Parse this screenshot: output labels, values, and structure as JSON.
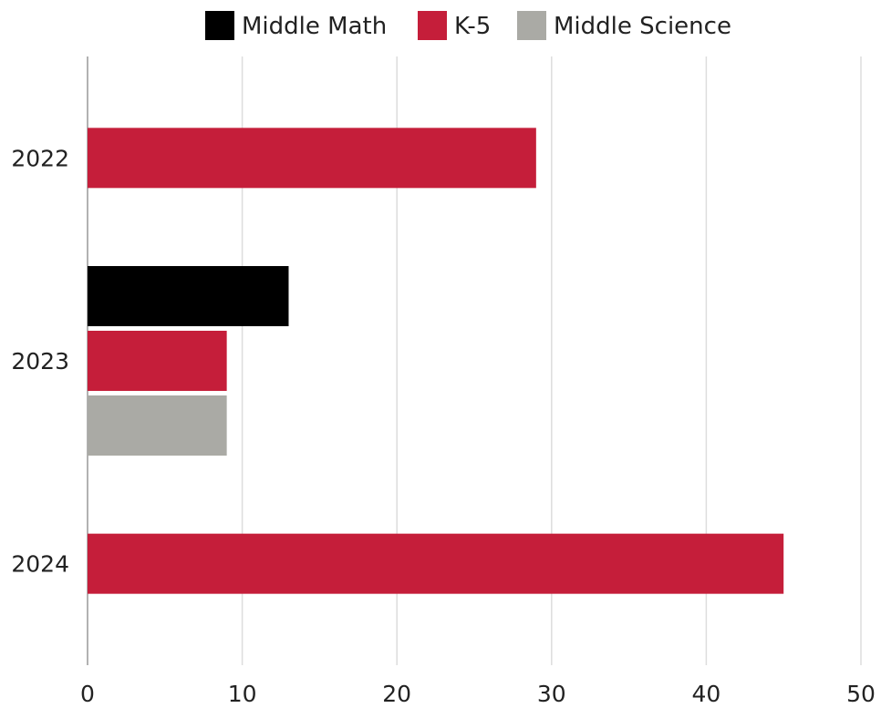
{
  "chart_data": {
    "type": "bar",
    "orientation": "horizontal",
    "title": "",
    "xlabel": "",
    "ylabel": "",
    "categories": [
      "2022",
      "2023",
      "2024"
    ],
    "series": [
      {
        "name": "Middle Math",
        "color": "#000000",
        "values": [
          null,
          13,
          null
        ]
      },
      {
        "name": "K-5",
        "color": "#c51e3a",
        "values": [
          29,
          9,
          45
        ]
      },
      {
        "name": "Middle Science",
        "color": "#aaaaa5",
        "values": [
          null,
          9,
          null
        ]
      }
    ],
    "xlim": [
      0,
      50
    ],
    "xticks": [
      "0",
      "10",
      "20",
      "30",
      "40",
      "50"
    ],
    "grid": "vertical",
    "legend_position": "top"
  }
}
